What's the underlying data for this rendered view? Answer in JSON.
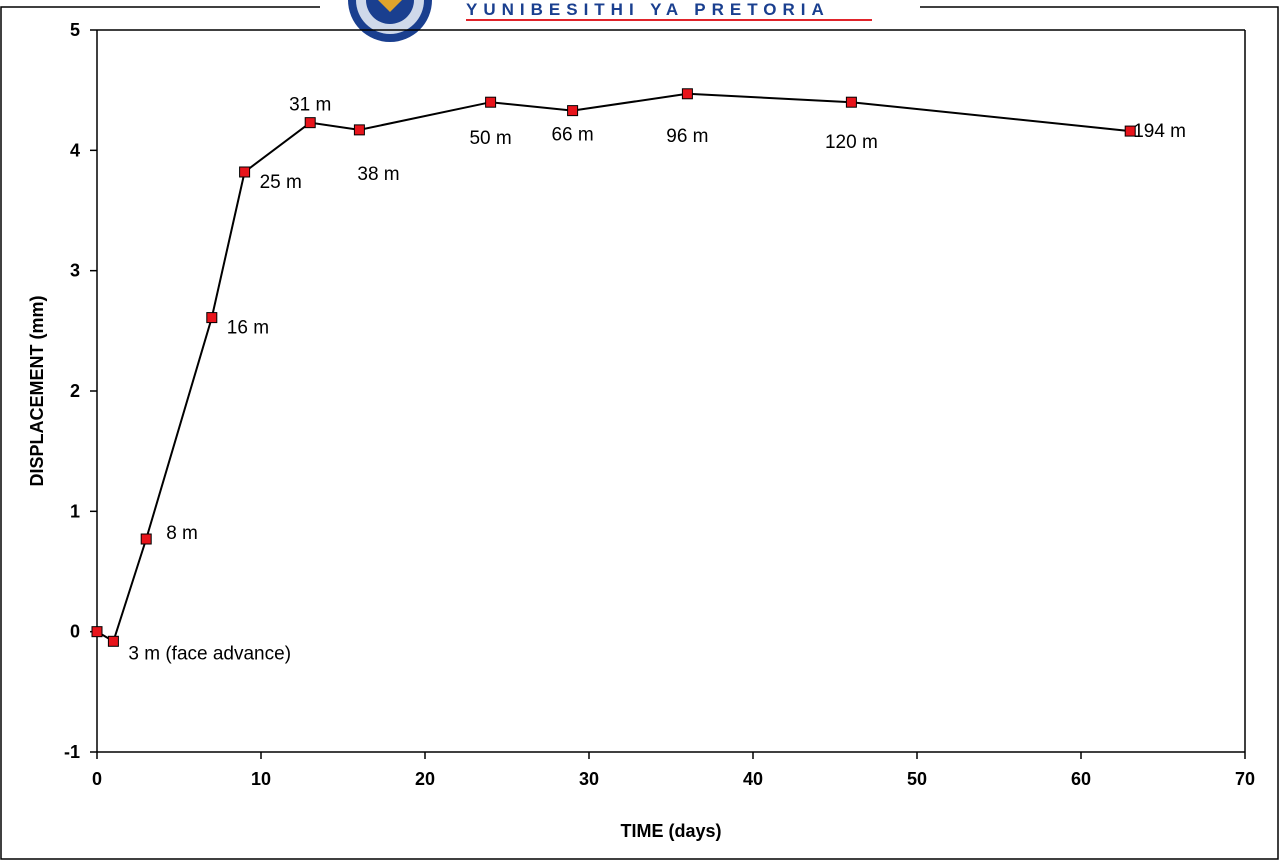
{
  "banner": {
    "text": "YUNIBESITHI YA PRETORIA",
    "logo_icon": "university-crest-icon",
    "text_color": "#1a3f8f",
    "underline_color": "#e0242b"
  },
  "chart_data": {
    "type": "line",
    "xlabel": "TIME (days)",
    "ylabel": "DISPLACEMENT (mm)",
    "xlim": [
      0,
      70
    ],
    "ylim": [
      -1,
      5
    ],
    "xticks": [
      0,
      10,
      20,
      30,
      40,
      50,
      60,
      70
    ],
    "yticks": [
      -1,
      0,
      1,
      2,
      3,
      4,
      5
    ],
    "grid": false,
    "legend": "none",
    "marker_color": "#e8141b",
    "line_color": "#000000",
    "series": [
      {
        "x": [
          0,
          1,
          3,
          7,
          9,
          13,
          16,
          24,
          29,
          36,
          46,
          63
        ],
        "y": [
          0,
          -0.08,
          0.77,
          2.61,
          3.82,
          4.23,
          4.17,
          4.4,
          4.33,
          4.47,
          4.4,
          4.16
        ]
      }
    ],
    "point_labels": [
      "",
      "3 m (face advance)",
      "8 m",
      "16 m",
      "25 m",
      "31 m",
      "38 m",
      "50 m",
      "66 m",
      "96 m",
      "120 m",
      "194 m"
    ]
  }
}
